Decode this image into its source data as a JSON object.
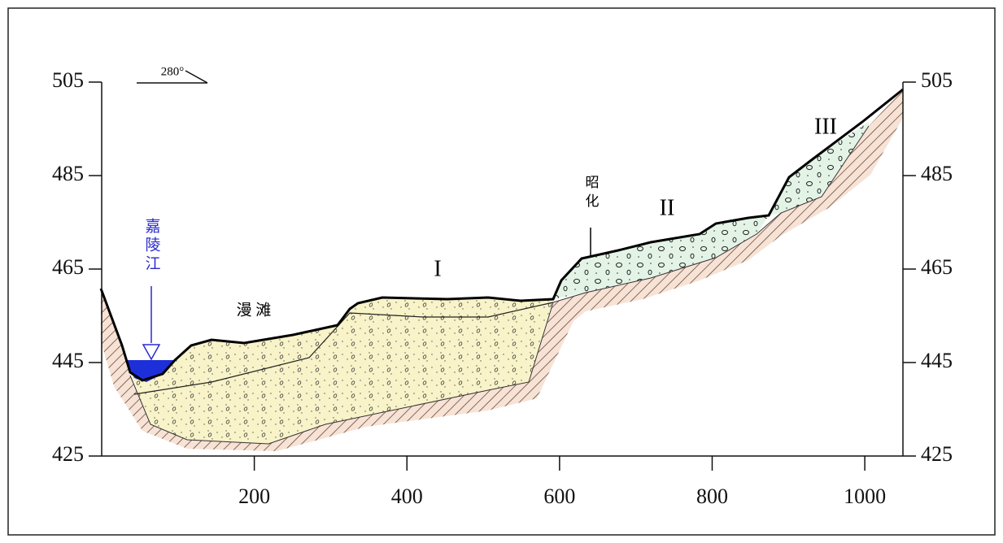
{
  "chart_data": {
    "type": "profile",
    "orientation": "280°",
    "xlim": [
      0,
      1050
    ],
    "ylim": [
      425,
      505
    ],
    "xticks": [
      200,
      400,
      600,
      800,
      1000
    ],
    "yticks": [
      425,
      445,
      465,
      485,
      505
    ],
    "labels": {
      "river": "嘉陵江",
      "floodplain": "漫 滩",
      "terrace1": "I",
      "terrace2": "II",
      "terrace3": "III",
      "town": "昭化"
    }
  }
}
